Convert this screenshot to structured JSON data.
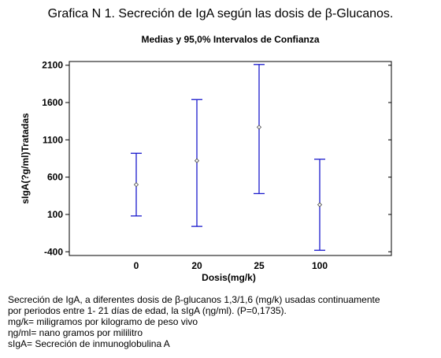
{
  "figure": {
    "title": "Grafica N 1.   Secreción de IgA según las dosis de β-Glucanos."
  },
  "chart_data": {
    "type": "interval",
    "title": "Medias y 95,0% Intervalos de Confianza",
    "xlabel": "Dosis(mg/k)",
    "ylabel": "sIgA(?g/ml)Tratadas",
    "categories": [
      "0",
      "20",
      "25",
      "100"
    ],
    "means": [
      500,
      820,
      1270,
      230
    ],
    "lower": [
      80,
      -60,
      380,
      -380
    ],
    "upper": [
      920,
      1640,
      2110,
      840
    ],
    "yticks": [
      -400,
      100,
      600,
      1100,
      1600,
      2100
    ],
    "ytick_labels": [
      "-400",
      "100",
      "600",
      "1100",
      "1600",
      "2100"
    ],
    "ylim": [
      -450,
      2150
    ],
    "grid": false,
    "colors": {
      "interval": "#1a1acc",
      "marker": "#444444",
      "axis": "#000000"
    }
  },
  "caption": {
    "lines": [
      "Secreción de IgA, a diferentes  dosis de β-glucanos 1,3/1,6  (mg/k) usadas continuamente",
      "por periodos entre 1- 21 días de edad, la sIgA (ηg/ml).  (P=0,1735).",
      "mg/k= miligramos por kilogramo de peso vivo",
      "ηg/ml= nano gramos por mililitro",
      "sIgA= Secreción de inmunoglobulina A"
    ]
  }
}
